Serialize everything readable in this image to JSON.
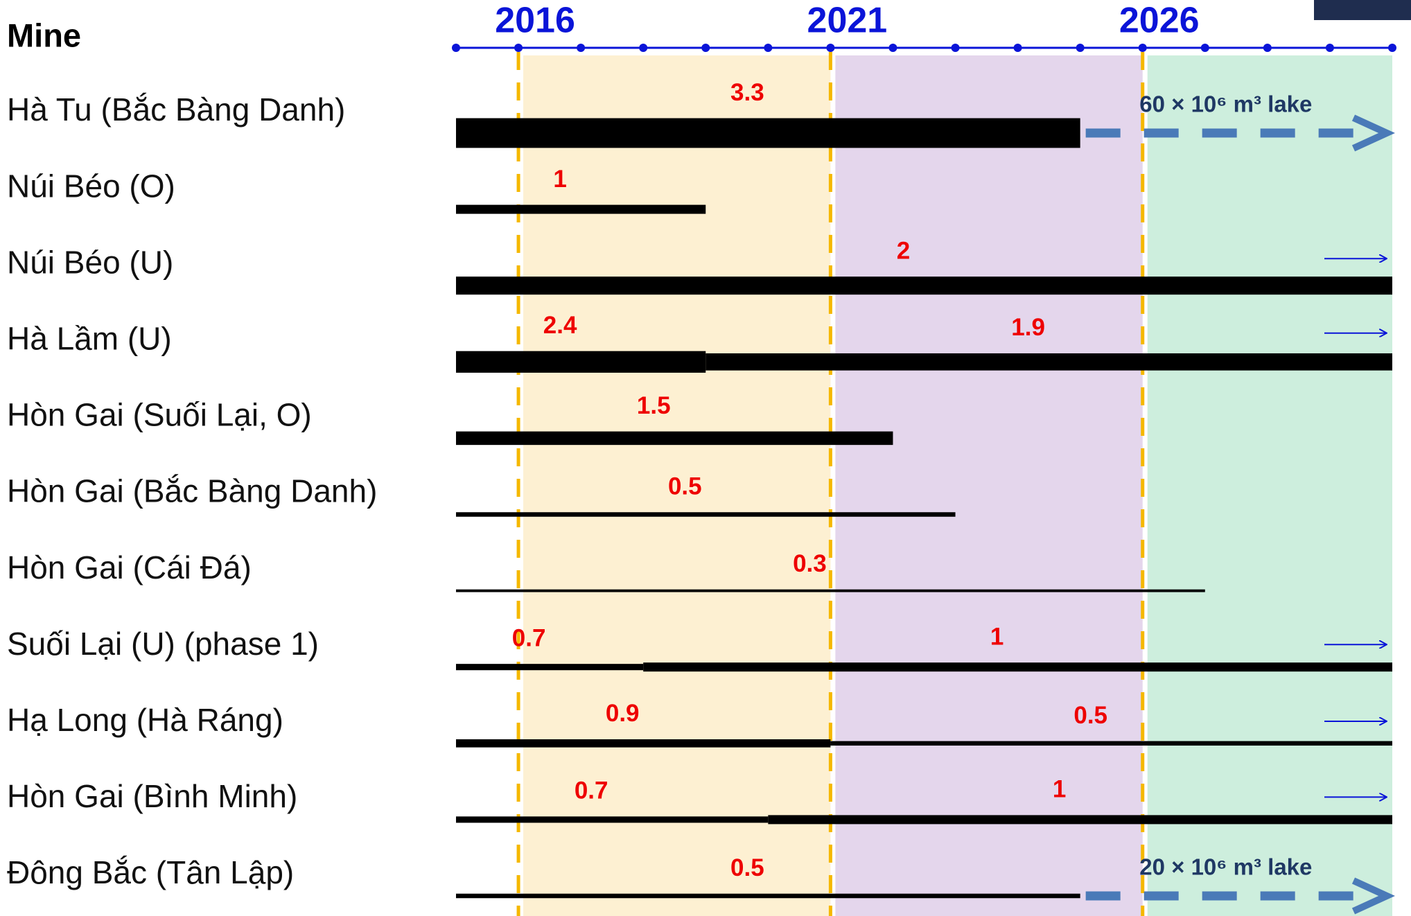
{
  "chart_data": {
    "type": "timeline",
    "header": "Mine",
    "xlim": [
      2015,
      2030
    ],
    "xticks": [
      2016,
      2021,
      2026
    ],
    "minor_xticks": [
      2015,
      2016,
      2017,
      2018,
      2019,
      2020,
      2021,
      2022,
      2023,
      2024,
      2025,
      2026,
      2027,
      2028,
      2029,
      2030
    ],
    "axis_color": "#0a14d8",
    "grid_color": "#f5b800",
    "periods": [
      {
        "start": 2016,
        "end": 2021,
        "color": "#fdf0d2"
      },
      {
        "start": 2021,
        "end": 2026,
        "color": "#e4d6ec"
      },
      {
        "start": 2026,
        "end": 2030,
        "color": "#cdeedd"
      }
    ],
    "bar_color": "#000000",
    "label_color": "#ee0000",
    "extension_color": "#4a7ab8",
    "rows": [
      {
        "name": "Hà Tu (Bắc Bàng Danh)",
        "segments": [
          {
            "value": 3.3,
            "start": 2015,
            "end": 2025
          }
        ],
        "extension": {
          "label": "60 × 10⁶ m³ lake",
          "start": 2025,
          "end": 2030
        }
      },
      {
        "name": "Núi Béo (O)",
        "segments": [
          {
            "value": 1.0,
            "start": 2015,
            "end": 2019
          }
        ]
      },
      {
        "name": "Núi Béo (U)",
        "segments": [
          {
            "value": 2.0,
            "start": 2015,
            "end": 2030
          }
        ],
        "arrow": true
      },
      {
        "name": "Hà Lầm (U)",
        "segments": [
          {
            "value": 2.4,
            "start": 2015,
            "end": 2019
          },
          {
            "value": 1.9,
            "start": 2019,
            "end": 2030
          }
        ],
        "arrow": true
      },
      {
        "name": "Hòn Gai (Suối Lại, O)",
        "segments": [
          {
            "value": 1.5,
            "start": 2015,
            "end": 2022
          }
        ]
      },
      {
        "name": "Hòn Gai (Bắc Bàng Danh)",
        "segments": [
          {
            "value": 0.5,
            "start": 2015,
            "end": 2023
          }
        ]
      },
      {
        "name": "Hòn Gai (Cái Đá)",
        "segments": [
          {
            "value": 0.3,
            "start": 2015,
            "end": 2027
          }
        ]
      },
      {
        "name": "Suối Lại (U) (phase 1)",
        "segments": [
          {
            "value": 0.7,
            "start": 2015,
            "end": 2018
          },
          {
            "value": 1.0,
            "start": 2018,
            "end": 2030
          }
        ],
        "arrow": true
      },
      {
        "name": "Hạ Long (Hà Ráng)",
        "segments": [
          {
            "value": 0.9,
            "start": 2015,
            "end": 2021
          },
          {
            "value": 0.5,
            "start": 2021,
            "end": 2030
          }
        ],
        "arrow": true
      },
      {
        "name": "Hòn Gai (Bình Minh)",
        "segments": [
          {
            "value": 0.7,
            "start": 2015,
            "end": 2020
          },
          {
            "value": 1.0,
            "start": 2020,
            "end": 2030
          }
        ],
        "arrow": true
      },
      {
        "name": "Đông Bắc (Tân Lập)",
        "segments": [
          {
            "value": 0.5,
            "start": 2015,
            "end": 2025
          }
        ],
        "extension": {
          "label": "20 × 10⁶ m³ lake",
          "start": 2025,
          "end": 2030
        }
      }
    ]
  }
}
